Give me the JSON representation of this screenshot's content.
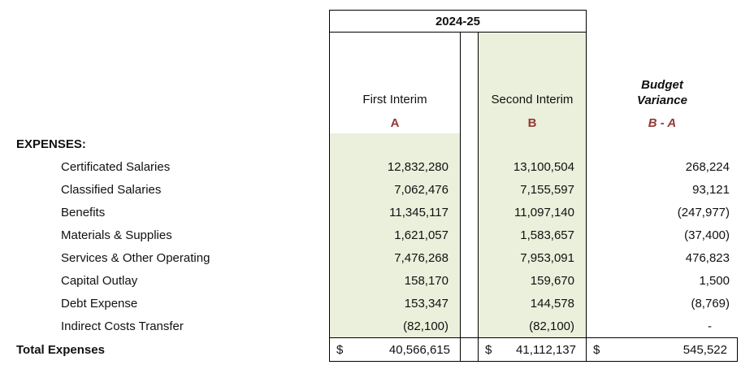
{
  "table": {
    "year": "2024-25",
    "columns": {
      "first_interim": {
        "label": "First Interim",
        "letter": "A"
      },
      "second_interim": {
        "label": "Second Interim",
        "letter": "B"
      },
      "variance": {
        "label_line1": "Budget",
        "label_line2": "Variance",
        "letter": "B - A"
      }
    },
    "section": "EXPENSES:",
    "rows": [
      {
        "label": "Certificated Salaries",
        "first": "12,832,280",
        "second": "13,100,504",
        "variance": "268,224"
      },
      {
        "label": "Classified Salaries",
        "first": "7,062,476",
        "second": "7,155,597",
        "variance": "93,121"
      },
      {
        "label": "Benefits",
        "first": "11,345,117",
        "second": "11,097,140",
        "variance": "(247,977)"
      },
      {
        "label": "Materials & Supplies",
        "first": "1,621,057",
        "second": "1,583,657",
        "variance": "(37,400)"
      },
      {
        "label": "Services & Other Operating",
        "first": "7,476,268",
        "second": "7,953,091",
        "variance": "476,823"
      },
      {
        "label": "Capital Outlay",
        "first": "158,170",
        "second": "159,670",
        "variance": "1,500"
      },
      {
        "label": "Debt Expense",
        "first": "153,347",
        "second": "144,578",
        "variance": "(8,769)"
      },
      {
        "label": "Indirect Costs Transfer",
        "first": "(82,100)",
        "second": "(82,100)",
        "variance": "-"
      }
    ],
    "total": {
      "label": "Total Expenses",
      "currency": "$",
      "first": "40,566,615",
      "second": "41,112,137",
      "variance": "545,522"
    }
  },
  "colors": {
    "fill_green": "#EAF0DB",
    "accent_red": "#953735"
  }
}
